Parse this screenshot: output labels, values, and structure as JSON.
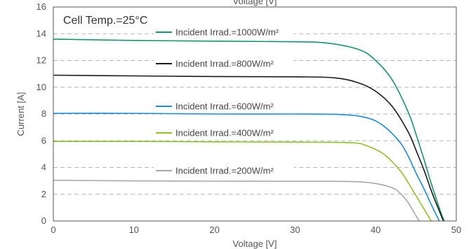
{
  "chart_data": {
    "type": "line",
    "top_axis_label": "Voltage [V]",
    "xlabel": "Voltage [V]",
    "ylabel": "Current [A]",
    "xlim": [
      0,
      50
    ],
    "ylim": [
      0,
      16
    ],
    "x_ticks": [
      0,
      10,
      20,
      30,
      40,
      50
    ],
    "y_ticks": [
      0,
      2,
      4,
      6,
      8,
      10,
      12,
      14,
      16
    ],
    "grid": "horizontal-dashed",
    "annotation": "Cell Temp.=25°C",
    "legend_placement": "inside-left",
    "series": [
      {
        "name": "Incident Irrad.=1000W/m²",
        "color": "#1a9270",
        "x": [
          0,
          10,
          20,
          30,
          34,
          38,
          40,
          42,
          44,
          45,
          46,
          47,
          48,
          48.5
        ],
        "y": [
          13.6,
          13.5,
          13.45,
          13.4,
          13.3,
          12.8,
          12.0,
          10.6,
          8.2,
          6.5,
          4.6,
          2.6,
          0.8,
          0
        ]
      },
      {
        "name": "Incident Irrad.=800W/m²",
        "color": "#1a1a1a",
        "x": [
          0,
          10,
          20,
          30,
          35,
          38,
          40,
          42,
          44,
          45,
          46,
          47,
          48,
          48.4
        ],
        "y": [
          10.9,
          10.85,
          10.8,
          10.78,
          10.7,
          10.3,
          9.7,
          8.6,
          6.7,
          5.3,
          3.8,
          2.1,
          0.6,
          0
        ]
      },
      {
        "name": "Incident Irrad.=600W/m²",
        "color": "#1f8ad0",
        "x": [
          0,
          10,
          20,
          30,
          36,
          39,
          41,
          43,
          44,
          45,
          46,
          47,
          47.9
        ],
        "y": [
          8.05,
          8.05,
          8.0,
          8.0,
          7.95,
          7.7,
          7.1,
          5.9,
          4.9,
          3.6,
          2.4,
          1.1,
          0
        ]
      },
      {
        "name": "Incident Irrad.=400W/m²",
        "color": "#8fbf2f",
        "x": [
          0,
          10,
          20,
          30,
          37,
          39,
          41,
          43,
          44,
          45,
          46,
          46.9
        ],
        "y": [
          5.95,
          5.95,
          5.92,
          5.9,
          5.85,
          5.6,
          5.0,
          3.8,
          2.9,
          1.9,
          0.9,
          0
        ]
      },
      {
        "name": "Incident Irrad.=200W/m²",
        "color": "#a8a8a8",
        "x": [
          0,
          10,
          20,
          30,
          37,
          40,
          42,
          43,
          44,
          44.8,
          45.4
        ],
        "y": [
          3.05,
          3.0,
          2.98,
          2.97,
          2.95,
          2.8,
          2.5,
          2.1,
          1.4,
          0.6,
          0
        ]
      }
    ]
  }
}
